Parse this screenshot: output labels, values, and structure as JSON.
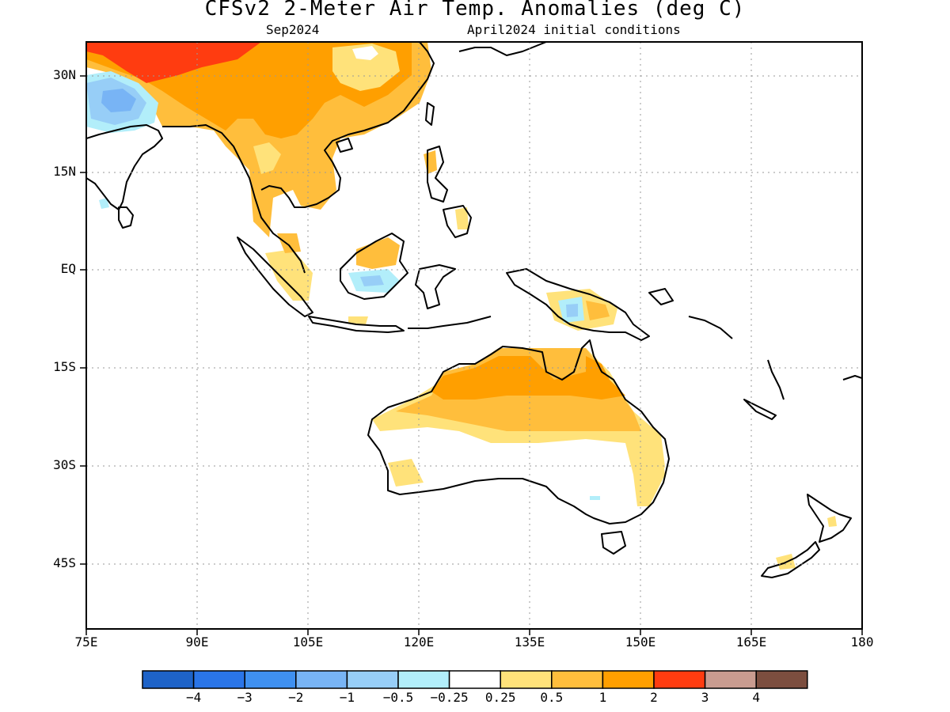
{
  "header": {
    "title": "CFSv2 2-Meter Air Temp. Anomalies (deg C)",
    "valid_month": "Sep2024",
    "initial_conditions": "April2024 initial conditions"
  },
  "axes": {
    "y_labels": [
      "30N",
      "15N",
      "EQ",
      "15S",
      "30S",
      "45S"
    ],
    "x_labels": [
      "75E",
      "90E",
      "105E",
      "120E",
      "135E",
      "150E",
      "165E",
      "180"
    ],
    "lon_range": [
      75,
      180
    ],
    "lat_range": [
      -55,
      35
    ],
    "grid": true
  },
  "colorbar": {
    "colors": [
      "#1e63c8",
      "#2a75e8",
      "#3f90f0",
      "#78b4f5",
      "#97cef7",
      "#b2eefa",
      "#ffffff",
      "#ffe27a",
      "#ffbe3c",
      "#ff9f00",
      "#ff3c10",
      "#c99c90",
      "#7c4e3f"
    ],
    "labels": [
      "-4",
      "-3",
      "-2",
      "-1",
      "-0.5",
      "-0.25",
      "0.25",
      "0.5",
      "1",
      "2",
      "3",
      "4"
    ]
  }
}
